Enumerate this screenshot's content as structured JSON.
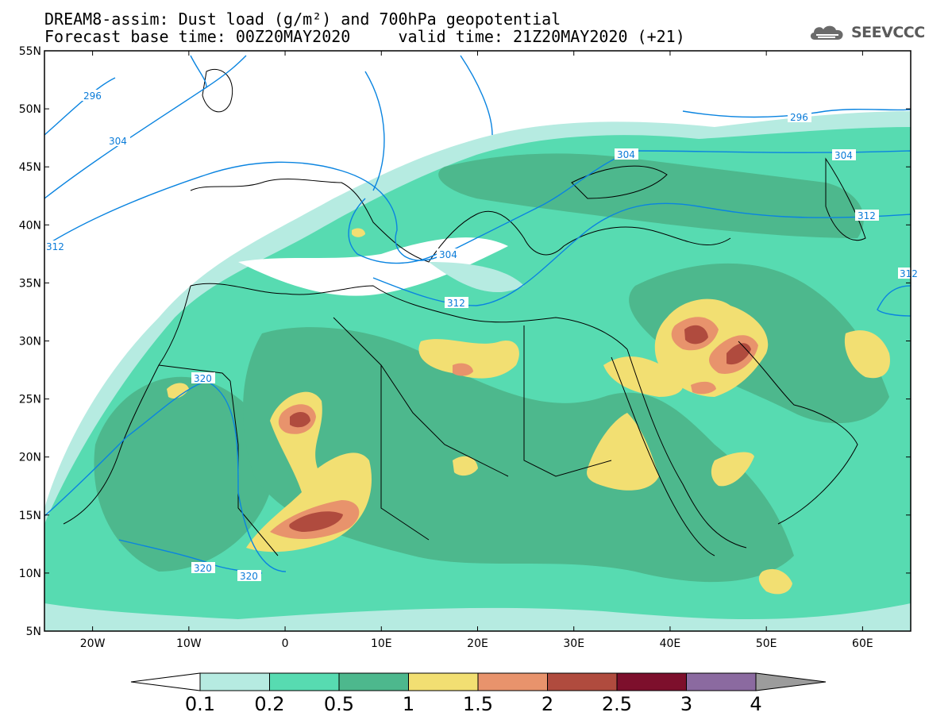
{
  "title": {
    "line1": "DREAM8-assim: Dust load (g/m²) and 700hPa geopotential",
    "line2": "Forecast base time: 00Z20MAY2020     valid time: 21Z20MAY2020 (+21)"
  },
  "logo": {
    "text": "SEEVCCC",
    "icon": "cloud-icon"
  },
  "axes": {
    "lat_labels": [
      "55N",
      "50N",
      "45N",
      "40N",
      "35N",
      "30N",
      "25N",
      "20N",
      "15N",
      "10N",
      "5N"
    ],
    "lon_labels": [
      "20W",
      "10W",
      "0",
      "10E",
      "20E",
      "30E",
      "40E",
      "50E",
      "60E"
    ],
    "lon_range": [
      -25,
      65
    ],
    "lat_range": [
      5,
      55
    ]
  },
  "contours": {
    "color": "#0a84e0",
    "labels": [
      {
        "text": "296",
        "id": "c296a"
      },
      {
        "text": "304",
        "id": "c304a"
      },
      {
        "text": "312",
        "id": "c312a"
      },
      {
        "text": "296",
        "id": "c296b"
      },
      {
        "text": "304",
        "id": "c304b"
      },
      {
        "text": "304",
        "id": "c304c"
      },
      {
        "text": "304",
        "id": "c304d"
      },
      {
        "text": "312",
        "id": "c312b"
      },
      {
        "text": "312",
        "id": "c312c"
      },
      {
        "text": "312",
        "id": "c312d"
      },
      {
        "text": "320",
        "id": "c320a"
      },
      {
        "text": "320",
        "id": "c320b"
      },
      {
        "text": "320",
        "id": "c320c"
      }
    ]
  },
  "colorbar": {
    "colors": [
      "#ffffff",
      "#b6ebe1",
      "#57dbb1",
      "#4db88d",
      "#f2df72",
      "#e8936c",
      "#b04b3e",
      "#7d0f2c",
      "#8b6aa0",
      "#9c9c9c"
    ],
    "labels": [
      "0.1",
      "0.2",
      "0.5",
      "1",
      "1.5",
      "2",
      "2.5",
      "3",
      "4"
    ]
  }
}
